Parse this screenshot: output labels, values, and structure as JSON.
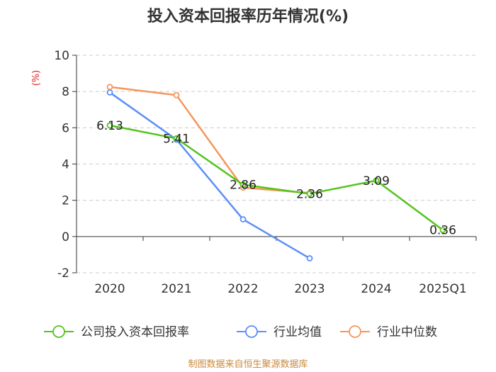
{
  "chart_data": {
    "type": "line",
    "title": "投入资本回报率历年情况(%)",
    "ylabel": "(%)",
    "categories": [
      "2020",
      "2021",
      "2022",
      "2023",
      "2024",
      "2025Q1"
    ],
    "ylim": [
      -2,
      10
    ],
    "yticks": [
      -2,
      0,
      2,
      4,
      6,
      8,
      10
    ],
    "ytick_labels": [
      "-2",
      "0",
      "2",
      "4",
      "6",
      "8",
      "10"
    ],
    "grid": true,
    "series": [
      {
        "name": "公司投入资本回报率",
        "color": "#52c41a",
        "values": [
          6.13,
          5.41,
          2.86,
          2.36,
          3.09,
          0.36
        ],
        "labels": [
          "6.13",
          "5.41",
          "2.86",
          "2.36",
          "3.09",
          "0.36"
        ]
      },
      {
        "name": "行业均值",
        "color": "#5b8ff9",
        "values": [
          7.95,
          5.35,
          0.95,
          -1.2,
          null,
          null
        ]
      },
      {
        "name": "行业中位数",
        "color": "#f6965c",
        "values": [
          8.25,
          7.8,
          2.7,
          2.4,
          null,
          null
        ]
      }
    ],
    "legend_position": "bottom",
    "source": "制图数据来自恒生聚源数据库"
  }
}
